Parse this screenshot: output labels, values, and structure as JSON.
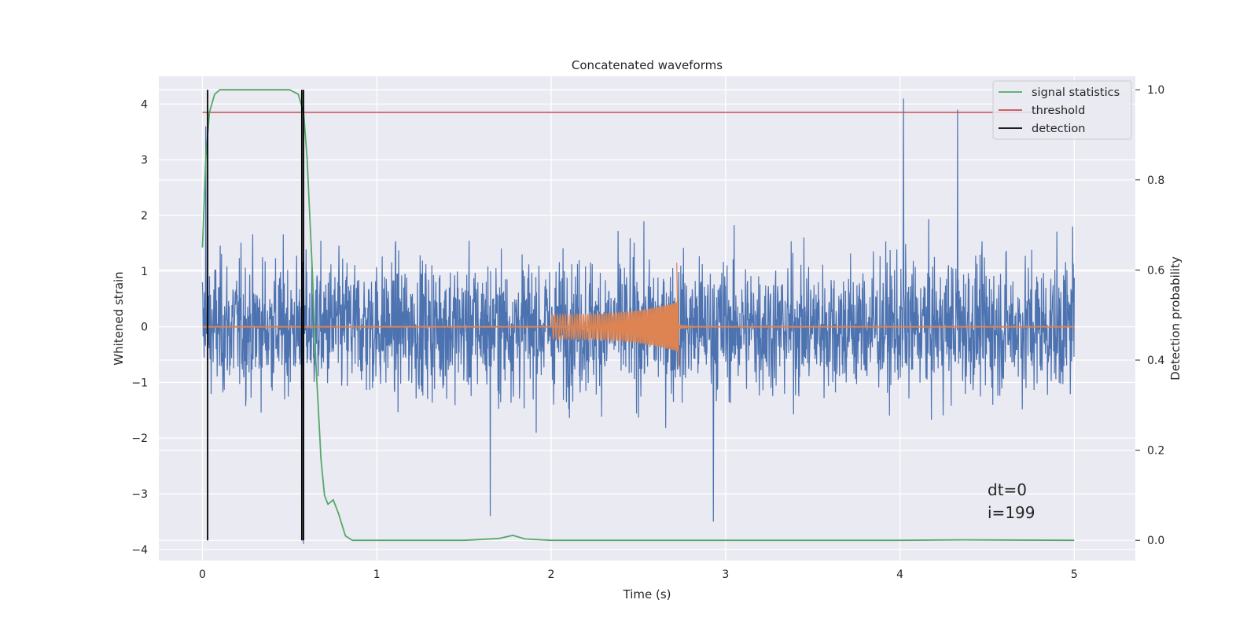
{
  "chart_data": {
    "type": "line",
    "title": "Concatenated waveforms",
    "xlabel": "Time (s)",
    "ylabel": "Whitened strain",
    "y2label": "Detection probability",
    "xlim": [
      -0.25,
      5.35
    ],
    "ylim": [
      -4.2,
      4.5
    ],
    "y2lim": [
      -0.045,
      1.03
    ],
    "xticks": [
      0,
      1,
      2,
      3,
      4,
      5
    ],
    "yticks": [
      -4,
      -3,
      -2,
      -1,
      0,
      1,
      2,
      3,
      4
    ],
    "y2ticks": [
      0.0,
      0.2,
      0.4,
      0.6,
      0.8,
      1.0
    ],
    "grid": true,
    "legend_position": "top-right",
    "annotation": [
      "dt=0",
      "i=199"
    ],
    "series": [
      {
        "name": "",
        "color": "#4c72b0",
        "kind": "noise",
        "x_range": [
          0,
          5
        ],
        "envelope": [
          -3.9,
          4.1
        ],
        "peaks": [
          [
            0.02,
            3.6
          ],
          [
            0.58,
            -3.9
          ],
          [
            1.65,
            -3.4
          ],
          [
            2.93,
            -3.5
          ],
          [
            4.02,
            4.1
          ],
          [
            4.33,
            3.9
          ],
          [
            4.99,
            1.8
          ]
        ]
      },
      {
        "name": "",
        "color": "#dd8452",
        "kind": "chirp",
        "x_range": [
          2.0,
          2.73
        ],
        "start_amplitude": 0.22,
        "peak": [
          2.72,
          1.15
        ],
        "trough": [
          2.73,
          -0.75
        ]
      },
      {
        "name": "signal statistics",
        "color": "#55a868",
        "axis": "y2",
        "x": [
          0.0,
          0.02,
          0.04,
          0.07,
          0.1,
          0.15,
          0.3,
          0.5,
          0.55,
          0.58,
          0.6,
          0.63,
          0.65,
          0.68,
          0.7,
          0.72,
          0.75,
          0.78,
          0.82,
          0.86,
          1.0,
          1.5,
          1.7,
          1.78,
          1.85,
          2.0,
          3.0,
          4.0,
          4.35,
          5.0
        ],
        "values": [
          0.65,
          0.85,
          0.95,
          0.99,
          1.0,
          1.0,
          1.0,
          1.0,
          0.99,
          0.95,
          0.85,
          0.6,
          0.4,
          0.18,
          0.1,
          0.08,
          0.09,
          0.06,
          0.01,
          0.0,
          0.0,
          0.0,
          0.004,
          0.011,
          0.003,
          0.0,
          0.0,
          0.0,
          0.001,
          0.0
        ]
      },
      {
        "name": "threshold",
        "color": "#c44e52",
        "axis": "y2",
        "x": [
          0,
          5
        ],
        "values": [
          0.95,
          0.95
        ]
      },
      {
        "name": "detection",
        "color": "#000000",
        "axis": "y2",
        "kind": "vlines",
        "x": [
          0.03,
          0.57,
          0.58
        ],
        "ymin": 0.0,
        "ymax": 1.0
      }
    ]
  }
}
